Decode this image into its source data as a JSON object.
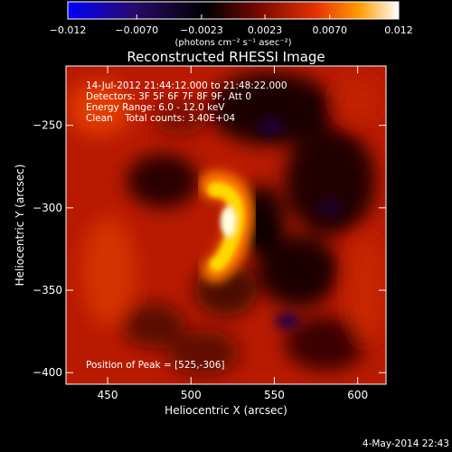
{
  "chart_data": {
    "type": "heatmap",
    "title": "Reconstructed RHESSI Image",
    "xlabel": "Heliocentric X (arcsec)",
    "ylabel": "Heliocentric Y (arcsec)",
    "xlim": [
      425,
      617
    ],
    "ylim": [
      -407,
      -214
    ],
    "x_ticks": [
      450,
      500,
      550,
      600
    ],
    "y_ticks": [
      -250,
      -300,
      -350,
      -400
    ],
    "x_tick_labels": [
      "450",
      "500",
      "550",
      "600"
    ],
    "y_tick_labels": [
      "−250",
      "−300",
      "−350",
      "−400"
    ],
    "colorbar": {
      "range": [
        -0.012,
        0.012
      ],
      "tick_values": [
        -0.012,
        -0.007,
        -0.0023,
        0.0023,
        0.007,
        0.012
      ],
      "tick_labels": [
        "−0.012",
        "−0.0070",
        "−0.0023",
        "0.0023",
        "0.0070",
        "0.012"
      ],
      "unit_label": "(photons cm⁻² s⁻¹ asec⁻²)",
      "colors": [
        "#0000ff",
        "#2a0a6a",
        "#000000",
        "#7a0a00",
        "#e63200",
        "#ff9a00",
        "#ffffff"
      ]
    },
    "annotations": [
      "14-Jul-2012 21:44:12.000 to 21:48:22.000",
      "Detectors: 3F 5F 6F 7F 8F 9F, Att 0",
      "Energy Range: 6.0 - 12.0 keV",
      "Clean    Total counts: 3.40E+04"
    ],
    "peak_label": "Position of Peak = [525,-306]",
    "peak": [
      525,
      -306
    ],
    "timestamp": "4-May-2014 22:43"
  }
}
